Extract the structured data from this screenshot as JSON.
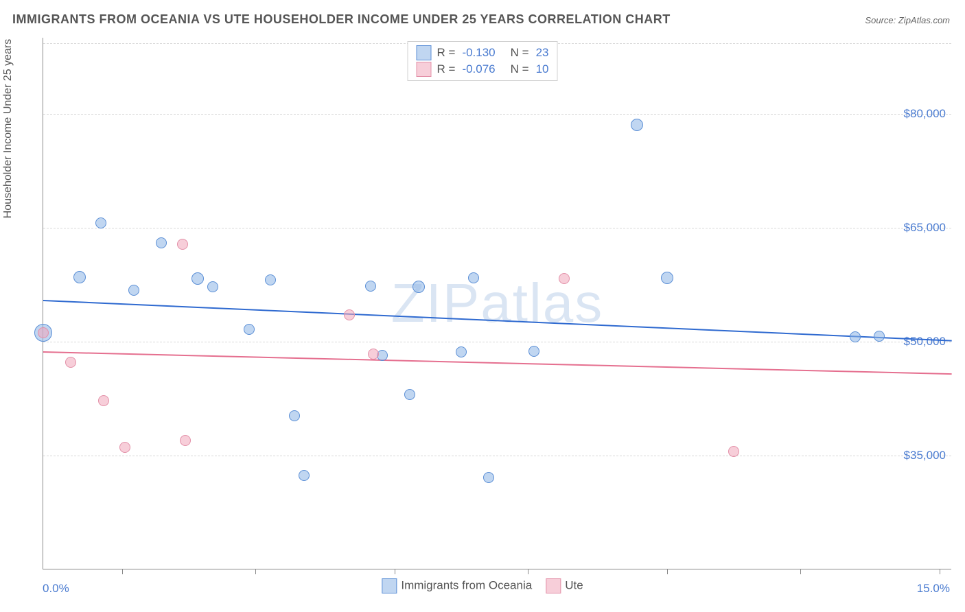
{
  "title": "IMMIGRANTS FROM OCEANIA VS UTE HOUSEHOLDER INCOME UNDER 25 YEARS CORRELATION CHART",
  "source": "Source: ZipAtlas.com",
  "watermark": "ZIPatlas",
  "chart": {
    "type": "scatter",
    "xlim": [
      0,
      15
    ],
    "ylim": [
      20000,
      90000
    ],
    "x_label_min": "0.0%",
    "x_label_max": "15.0%",
    "y_axis_title": "Householder Income Under 25 years",
    "y_ticks": [
      {
        "value": 35000,
        "label": "$35,000"
      },
      {
        "value": 50000,
        "label": "$50,000"
      },
      {
        "value": 65000,
        "label": "$65,000"
      },
      {
        "value": 80000,
        "label": "$80,000"
      }
    ],
    "x_tick_positions": [
      1.3,
      3.5,
      5.8,
      8.0,
      10.3,
      12.5,
      14.8
    ],
    "background_color": "#ffffff",
    "grid_color": "#d8d8d8",
    "axis_color": "#888888"
  },
  "series": [
    {
      "name": "Immigrants from Oceania",
      "fill_color": "rgba(140, 180, 230, 0.55)",
      "stroke_color": "#5b8fd6",
      "line_color": "#2f6ad0",
      "r_value": "-0.130",
      "n_value": "23",
      "regression": {
        "x1": 0,
        "y1": 55500,
        "x2": 15,
        "y2": 50200
      },
      "points": [
        {
          "x": 0.0,
          "y": 51200,
          "size": 26
        },
        {
          "x": 0.6,
          "y": 58500,
          "size": 18
        },
        {
          "x": 0.95,
          "y": 65600,
          "size": 16
        },
        {
          "x": 1.5,
          "y": 56800,
          "size": 16
        },
        {
          "x": 1.95,
          "y": 63000,
          "size": 16
        },
        {
          "x": 2.55,
          "y": 58300,
          "size": 18
        },
        {
          "x": 2.8,
          "y": 57200,
          "size": 16
        },
        {
          "x": 3.4,
          "y": 51600,
          "size": 16
        },
        {
          "x": 3.75,
          "y": 58100,
          "size": 16
        },
        {
          "x": 4.15,
          "y": 40200,
          "size": 16
        },
        {
          "x": 4.3,
          "y": 32400,
          "size": 16
        },
        {
          "x": 5.4,
          "y": 57300,
          "size": 16
        },
        {
          "x": 5.6,
          "y": 48200,
          "size": 16
        },
        {
          "x": 6.05,
          "y": 43000,
          "size": 16
        },
        {
          "x": 6.2,
          "y": 57200,
          "size": 18
        },
        {
          "x": 6.9,
          "y": 48600,
          "size": 16
        },
        {
          "x": 7.1,
          "y": 58400,
          "size": 16
        },
        {
          "x": 7.35,
          "y": 32100,
          "size": 16
        },
        {
          "x": 8.1,
          "y": 48700,
          "size": 16
        },
        {
          "x": 9.8,
          "y": 78500,
          "size": 18
        },
        {
          "x": 10.3,
          "y": 58400,
          "size": 18
        },
        {
          "x": 13.4,
          "y": 50600,
          "size": 16
        },
        {
          "x": 13.8,
          "y": 50700,
          "size": 16
        }
      ]
    },
    {
      "name": "Ute",
      "fill_color": "rgba(240, 165, 185, 0.55)",
      "stroke_color": "#e390a8",
      "line_color": "#e56f8f",
      "r_value": "-0.076",
      "n_value": "10",
      "regression": {
        "x1": 0,
        "y1": 48700,
        "x2": 15,
        "y2": 45800
      },
      "points": [
        {
          "x": 0.0,
          "y": 51200,
          "size": 16
        },
        {
          "x": 0.45,
          "y": 47300,
          "size": 16
        },
        {
          "x": 1.0,
          "y": 42200,
          "size": 16
        },
        {
          "x": 1.35,
          "y": 36100,
          "size": 16
        },
        {
          "x": 2.3,
          "y": 62800,
          "size": 16
        },
        {
          "x": 2.35,
          "y": 37000,
          "size": 16
        },
        {
          "x": 5.05,
          "y": 53500,
          "size": 16
        },
        {
          "x": 5.45,
          "y": 48400,
          "size": 16
        },
        {
          "x": 8.6,
          "y": 58300,
          "size": 16
        },
        {
          "x": 11.4,
          "y": 35500,
          "size": 16
        }
      ]
    }
  ]
}
